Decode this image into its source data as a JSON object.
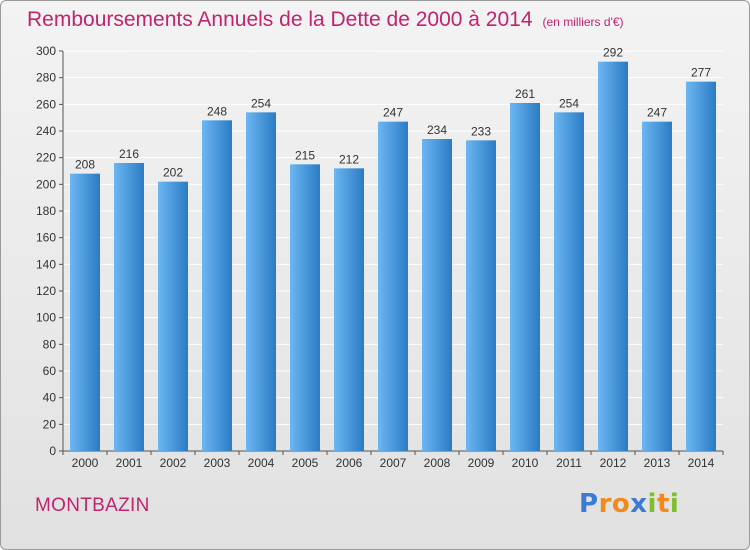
{
  "header": {
    "title": "Remboursements Annuels de la Dette de 2000 à 2014",
    "unit": "(en milliers d'€)"
  },
  "footer": {
    "commune": "MONTBAZIN",
    "brand": "Proxiti",
    "brand_letters": [
      {
        "ch": "P",
        "color": "#3a7bd5"
      },
      {
        "ch": "r",
        "color": "#f08a1c"
      },
      {
        "ch": "o",
        "color": "#f08a1c"
      },
      {
        "ch": "x",
        "color": "#3a7bd5"
      },
      {
        "ch": "i",
        "color": "#7cbf2a"
      },
      {
        "ch": "t",
        "color": "#f08a1c"
      },
      {
        "ch": "i",
        "color": "#7cbf2a"
      }
    ]
  },
  "colors": {
    "accent": "#c0246e",
    "bar_light": "#6cb6f2",
    "bar_dark": "#2b7bc4",
    "grid": "#ffffff"
  },
  "chart_data": {
    "type": "bar",
    "title": "Remboursements Annuels de la Dette de 2000 à 2014",
    "categories": [
      "2000",
      "2001",
      "2002",
      "2003",
      "2004",
      "2005",
      "2006",
      "2007",
      "2008",
      "2009",
      "2010",
      "2011",
      "2012",
      "2013",
      "2014"
    ],
    "values": [
      208,
      216,
      202,
      248,
      254,
      215,
      212,
      247,
      234,
      233,
      261,
      254,
      292,
      247,
      277
    ],
    "ylim": [
      0,
      300
    ],
    "yticks": [
      0,
      20,
      40,
      60,
      80,
      100,
      120,
      140,
      160,
      180,
      200,
      220,
      240,
      260,
      280,
      300
    ],
    "grid": true,
    "legend": "none"
  }
}
